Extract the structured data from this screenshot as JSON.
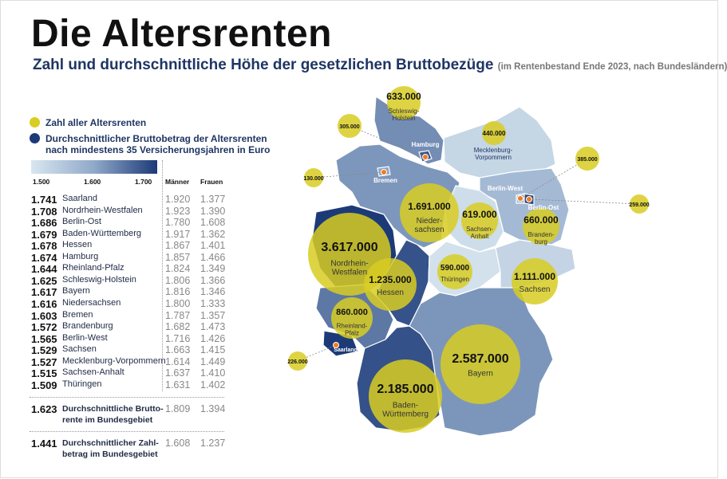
{
  "title": "Die Altersrenten",
  "subtitle": "Zahl und durchschnittliche Höhe der gesetzlichen Bruttobezüge",
  "subtitle_note": "(im Rentenbestand Ende 2023, nach Bundesländern)",
  "legend": {
    "count_label": "Zahl aller Altersrenten",
    "avg_label_1": "Durchschnittlicher Bruttobetrag der Altersrenten",
    "avg_label_2": "nach mindestens 35 Versicherungsjahren in Euro",
    "scale_ticks": [
      "1.500",
      "1.600",
      "1.700"
    ],
    "scale_range": [
      1500,
      1700
    ],
    "count_color": "#d8cd22",
    "scale_colors": [
      "#d9e6f0",
      "#1d3a78"
    ]
  },
  "table": {
    "col_men": "Männer",
    "col_women": "Frauen",
    "rows": [
      {
        "avg": "1.741",
        "name": "Saarland",
        "men": "1.920",
        "women": "1.377"
      },
      {
        "avg": "1.708",
        "name": "Nordrhein-Westfalen",
        "men": "1.923",
        "women": "1.390"
      },
      {
        "avg": "1.686",
        "name": "Berlin-Ost",
        "men": "1.780",
        "women": "1.608"
      },
      {
        "avg": "1.679",
        "name": "Baden-Württemberg",
        "men": "1.917",
        "women": "1.362"
      },
      {
        "avg": "1.678",
        "name": "Hessen",
        "men": "1.867",
        "women": "1.401"
      },
      {
        "avg": "1.674",
        "name": "Hamburg",
        "men": "1.857",
        "women": "1.466"
      },
      {
        "avg": "1.644",
        "name": "Rheinland-Pfalz",
        "men": "1.824",
        "women": "1.349"
      },
      {
        "avg": "1.625",
        "name": "Schleswig-Holstein",
        "men": "1.806",
        "women": "1.366"
      },
      {
        "avg": "1.617",
        "name": "Bayern",
        "men": "1.816",
        "women": "1.346"
      },
      {
        "avg": "1.616",
        "name": "Niedersachsen",
        "men": "1.800",
        "women": "1.333"
      },
      {
        "avg": "1.603",
        "name": "Bremen",
        "men": "1.787",
        "women": "1.357"
      },
      {
        "avg": "1.572",
        "name": "Brandenburg",
        "men": "1.682",
        "women": "1.473"
      },
      {
        "avg": "1.565",
        "name": "Berlin-West",
        "men": "1.716",
        "women": "1.426"
      },
      {
        "avg": "1.529",
        "name": "Sachsen",
        "men": "1.663",
        "women": "1.415"
      },
      {
        "avg": "1.527",
        "name": "Mecklenburg-Vorpommern",
        "men": "1.614",
        "women": "1.449"
      },
      {
        "avg": "1.515",
        "name": "Sachsen-Anhalt",
        "men": "1.637",
        "women": "1.410"
      },
      {
        "avg": "1.509",
        "name": "Thüringen",
        "men": "1.631",
        "women": "1.402"
      }
    ],
    "summary": [
      {
        "avg": "1.623",
        "name_1": "Durchschnittliche Brutto-",
        "name_2": "rente im Bundesgebiet",
        "men": "1.809",
        "women": "1.394"
      },
      {
        "avg": "1.441",
        "name_1": "Durchschnittlicher Zahl-",
        "name_2": "betrag im Bundesgebiet",
        "men": "1.608",
        "women": "1.237"
      }
    ]
  },
  "map": {
    "states": [
      {
        "id": "schleswig-holstein",
        "value": 1625,
        "count": "633.000",
        "label": [
          "Schleswig-",
          "Holstein"
        ]
      },
      {
        "id": "mecklenburg-vorpommern",
        "value": 1527,
        "count": "440.000",
        "label": [
          "Mecklenburg-",
          "Vorpommern"
        ]
      },
      {
        "id": "niedersachsen",
        "value": 1616,
        "count": "1.691.000",
        "label": [
          "Nieder-",
          "sachsen"
        ]
      },
      {
        "id": "brandenburg",
        "value": 1572,
        "count": "660.000",
        "label": [
          "Branden-",
          "burg"
        ]
      },
      {
        "id": "sachsen-anhalt",
        "value": 1515,
        "count": "619.000",
        "label": [
          "Sachsen-",
          "Anhalt"
        ]
      },
      {
        "id": "nordrhein-westfalen",
        "value": 1708,
        "count": "3.617.000",
        "label": [
          "Nordrhein-",
          "Westfalen"
        ]
      },
      {
        "id": "hessen",
        "value": 1678,
        "count": "1.235.000",
        "label": [
          "Hessen"
        ]
      },
      {
        "id": "thueringen",
        "value": 1509,
        "count": "590.000",
        "label": [
          "Thüringen"
        ]
      },
      {
        "id": "sachsen",
        "value": 1529,
        "count": "1.111.000",
        "label": [
          "Sachsen"
        ]
      },
      {
        "id": "rheinland-pfalz",
        "value": 1644,
        "count": "860.000",
        "label": [
          "Rheinland-",
          "Pfalz"
        ]
      },
      {
        "id": "saarland",
        "value": 1741,
        "count": "226.000",
        "label": [
          "Saarland"
        ]
      },
      {
        "id": "baden-wuerttemberg",
        "value": 1679,
        "count": "2.185.000",
        "label": [
          "Baden-",
          "Württemberg"
        ]
      },
      {
        "id": "bayern",
        "value": 1617,
        "count": "2.587.000",
        "label": [
          "Bayern"
        ]
      },
      {
        "id": "hamburg",
        "value": 1674,
        "count": "305.000",
        "label": [
          "Hamburg"
        ]
      },
      {
        "id": "bremen",
        "value": 1603,
        "count": "130.000",
        "label": [
          "Bremen"
        ]
      },
      {
        "id": "berlin-west",
        "value": 1565,
        "count": "385.000",
        "label": [
          "Berlin-West"
        ]
      },
      {
        "id": "berlin-ost",
        "value": 1686,
        "count": "259.000",
        "label": [
          "Berlin-Ost"
        ]
      }
    ],
    "city_marker_color": "#f07b1e"
  }
}
